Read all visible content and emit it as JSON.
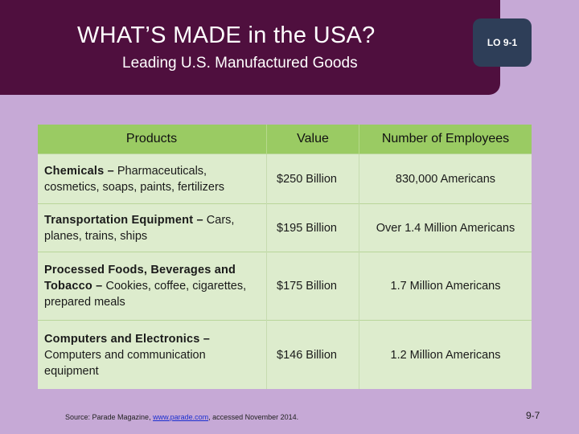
{
  "header": {
    "title": "WHAT’S MADE in the USA?",
    "subtitle": "Leading U.S. Manufactured Goods",
    "badge": "LO 9-1"
  },
  "table": {
    "columns": [
      "Products",
      "Value",
      "Number of Employees"
    ],
    "rows": [
      {
        "category": "Chemicals –",
        "examples": " Pharmaceuticals, cosmetics, soaps, paints, fertilizers",
        "value": "$250 Billion",
        "employees": "830,000 Americans"
      },
      {
        "category": "Transportation Equipment –",
        "examples": " Cars, planes, trains, ships",
        "value": "$195 Billion",
        "employees": "Over 1.4 Million Americans"
      },
      {
        "category": "Processed Foods, Beverages and Tobacco –",
        "examples": " Cookies, coffee, cigarettes, prepared meals",
        "value": "$175 Billion",
        "employees": "1.7 Million Americans"
      },
      {
        "category": "Computers and Electronics –",
        "examples": " Computers and communication equipment",
        "value": "$146 Billion",
        "employees": "1.2 Million Americans"
      }
    ]
  },
  "footer": {
    "source_prefix": "Source: Parade Magazine, ",
    "source_link": "www.parade.com",
    "source_suffix": ", accessed November 2014.",
    "page_number": "9-7"
  },
  "colors": {
    "background": "#c6a9d6",
    "header": "#4f0f3e",
    "badge": "#2e3e58",
    "table_header": "#9acb63",
    "table_cell": "#ddeccd",
    "link": "#1b2fd0"
  }
}
